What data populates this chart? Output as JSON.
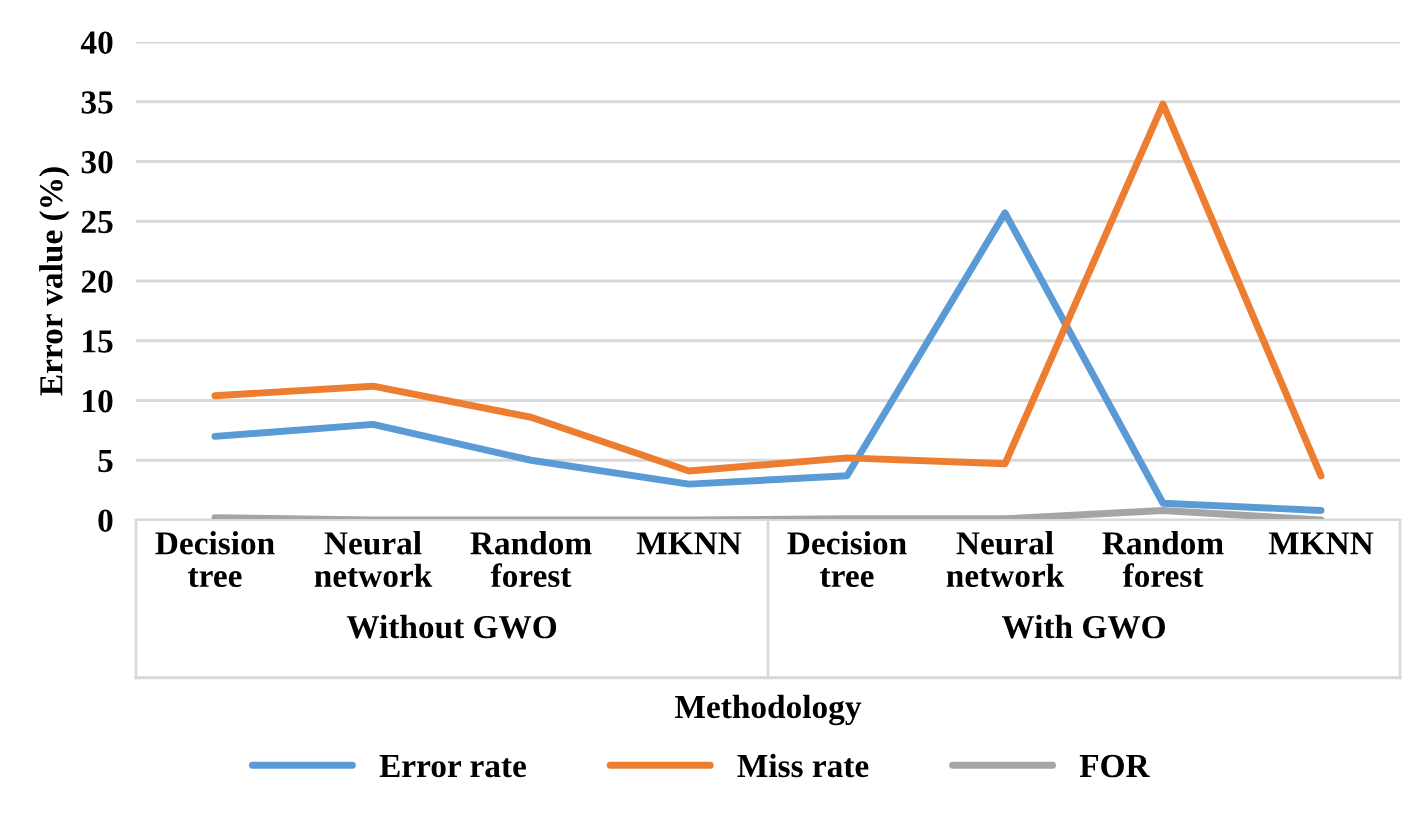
{
  "chart_data": {
    "type": "line",
    "xlabel": "Methodology",
    "ylabel": "Error value (%)",
    "categories": [
      "Decision tree",
      "Neural network",
      "Random forest",
      "MKNN",
      "Decision tree",
      "Neural network",
      "Random forest",
      "MKNN"
    ],
    "series": [
      {
        "name": "Error rate",
        "color": "#5b9bd5",
        "values": [
          7,
          8,
          5,
          3,
          3.7,
          25.7,
          1.4,
          0.8
        ]
      },
      {
        "name": "Miss rate",
        "color": "#ed7d31",
        "values": [
          10.4,
          11.2,
          8.6,
          4.1,
          5.2,
          4.7,
          34.8,
          3.7
        ]
      },
      {
        "name": "FOR",
        "color": "#a5a5a5",
        "values": [
          0.2,
          0,
          0,
          0,
          0.1,
          0.1,
          0.8,
          0
        ]
      }
    ],
    "annotations": [
      "Without GWO",
      "With GWO"
    ],
    "ylim": [
      0,
      40
    ],
    "yticks": [
      0,
      5,
      10,
      15,
      20,
      25,
      30,
      35,
      40
    ],
    "grid": "y",
    "legend": "bottom",
    "marker": "none",
    "line_style": "solid"
  }
}
